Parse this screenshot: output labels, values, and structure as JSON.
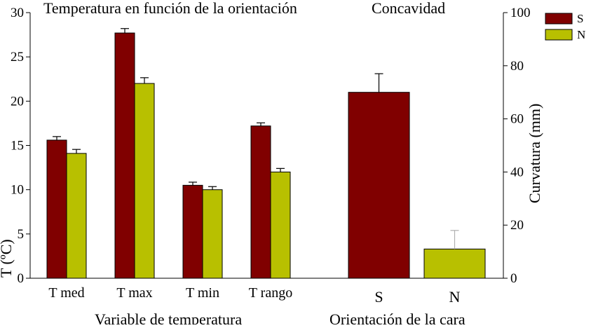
{
  "chart_data": [
    {
      "type": "bar",
      "title": "Temperatura en función de la orientación",
      "xlabel": "Variable de temperatura",
      "ylabel": "T (ºC)",
      "ylim": [
        0,
        30
      ],
      "yticks": [
        0,
        5,
        10,
        15,
        20,
        25,
        30
      ],
      "categories": [
        "T med",
        "T max",
        "T min",
        "T rango"
      ],
      "series": [
        {
          "name": "S",
          "color": "#800000",
          "values": [
            15.6,
            27.7,
            10.5,
            17.2
          ],
          "errors": [
            0.4,
            0.5,
            0.35,
            0.35
          ]
        },
        {
          "name": "N",
          "color": "#b8c000",
          "values": [
            14.1,
            22.0,
            10.0,
            12.0
          ],
          "errors": [
            0.45,
            0.65,
            0.35,
            0.4
          ]
        }
      ]
    },
    {
      "type": "bar",
      "title": "Concavidad",
      "xlabel": "Orientación de la cara",
      "ylabel": "Curvatura (mm)",
      "ylim": [
        0,
        100
      ],
      "yticks": [
        0,
        20,
        40,
        60,
        80,
        100
      ],
      "categories": [
        "S",
        "N"
      ],
      "values": [
        70,
        11
      ],
      "errors": [
        7,
        7
      ],
      "colors": [
        "#800000",
        "#b8c000"
      ]
    }
  ],
  "legend": [
    {
      "label": "S",
      "color": "#800000"
    },
    {
      "label": "N",
      "color": "#b8c000"
    }
  ]
}
